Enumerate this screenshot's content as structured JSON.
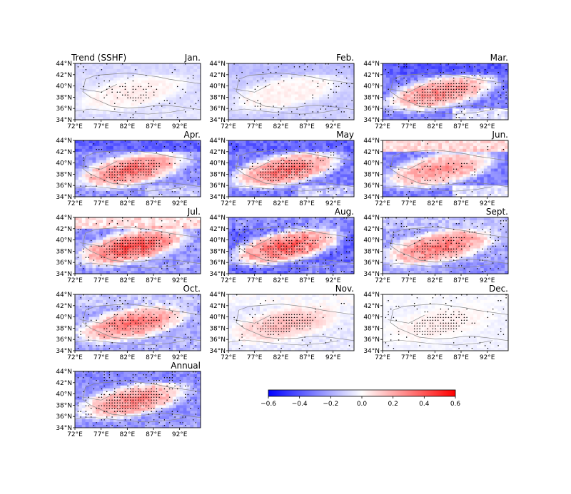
{
  "figure_title": "Trend (SSHF)",
  "colors": {
    "negative": "#0000ff",
    "zero": "#ffffff",
    "positive": "#ff0000",
    "frame": "#000000",
    "boundary": "#888888"
  },
  "axes": {
    "x_ticks": [
      "72°E",
      "77°E",
      "82°E",
      "87°E",
      "92°E"
    ],
    "y_ticks": [
      "34°N",
      "36°N",
      "38°N",
      "40°N",
      "42°N",
      "44°N"
    ]
  },
  "chart_data": {
    "type": "heatmap",
    "x_range": [
      72,
      96
    ],
    "y_range": [
      34,
      44
    ],
    "colorbar": {
      "min": -0.6,
      "max": 0.6,
      "ticks": [
        "−0.6",
        "−0.4",
        "−0.2",
        "0.0",
        "0.2",
        "0.4",
        "0.6"
      ],
      "colormap": "bwr"
    },
    "panels": [
      {
        "label": "Jan.",
        "basin": 0.05,
        "mountain": -0.08,
        "north": -0.1,
        "southeast": -0.05,
        "stipple_basin": 0.4,
        "stipple_margin": 0.2
      },
      {
        "label": "Feb.",
        "basin": 0.04,
        "mountain": -0.12,
        "north": -0.18,
        "southeast": -0.1,
        "stipple_basin": 0.0,
        "stipple_margin": 0.35
      },
      {
        "label": "Mar.",
        "basin": 0.3,
        "mountain": -0.3,
        "north": -0.45,
        "southeast": 0.1,
        "stipple_basin": 0.9,
        "stipple_margin": 0.45
      },
      {
        "label": "Apr.",
        "basin": 0.35,
        "mountain": -0.25,
        "north": -0.45,
        "southeast": -0.05,
        "stipple_basin": 0.9,
        "stipple_margin": 0.25
      },
      {
        "label": "May",
        "basin": 0.35,
        "mountain": -0.3,
        "north": -0.4,
        "southeast": 0.0,
        "stipple_basin": 0.95,
        "stipple_margin": 0.25
      },
      {
        "label": "Jun.",
        "basin": 0.28,
        "mountain": -0.3,
        "north": 0.35,
        "southeast": 0.1,
        "stipple_basin": 0.2,
        "stipple_margin": 0.1
      },
      {
        "label": "Jul.",
        "basin": 0.45,
        "mountain": -0.25,
        "north": 0.3,
        "southeast": -0.2,
        "stipple_basin": 0.95,
        "stipple_margin": 0.35
      },
      {
        "label": "Aug.",
        "basin": 0.4,
        "mountain": -0.35,
        "north": -0.2,
        "southeast": -0.25,
        "stipple_basin": 0.7,
        "stipple_margin": 0.45
      },
      {
        "label": "Sept.",
        "basin": 0.35,
        "mountain": -0.2,
        "north": -0.1,
        "southeast": -0.3,
        "stipple_basin": 0.6,
        "stipple_margin": 0.4
      },
      {
        "label": "Oct.",
        "basin": 0.35,
        "mountain": -0.2,
        "north": -0.08,
        "southeast": -0.15,
        "stipple_basin": 0.6,
        "stipple_margin": 0.4
      },
      {
        "label": "Nov.",
        "basin": 0.18,
        "mountain": -0.05,
        "north": 0.02,
        "southeast": -0.05,
        "stipple_basin": 0.9,
        "stipple_margin": 0.15
      },
      {
        "label": "Dec.",
        "basin": 0.05,
        "mountain": -0.03,
        "north": 0.0,
        "southeast": -0.03,
        "stipple_basin": 0.85,
        "stipple_margin": 0.3
      },
      {
        "label": "Annual",
        "basin": 0.3,
        "mountain": -0.25,
        "north": -0.3,
        "southeast": -0.2,
        "stipple_basin": 0.95,
        "stipple_margin": 0.7
      }
    ]
  }
}
